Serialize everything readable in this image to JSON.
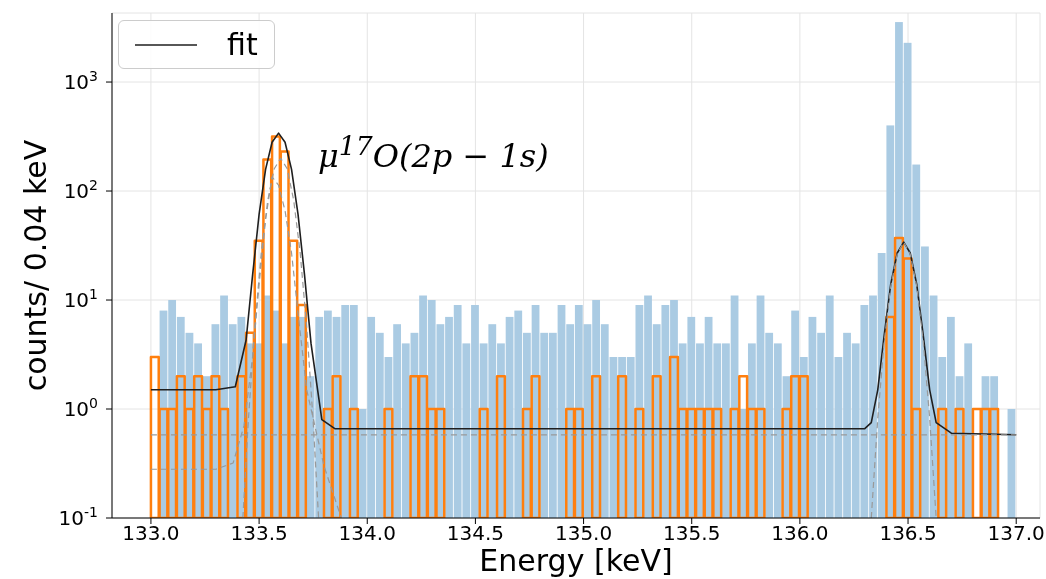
{
  "chart_data": {
    "type": "histogram",
    "xlabel": "Energy [keV]",
    "ylabel": "counts/ 0.04 keV",
    "annotations": [
      "μ$^{17}$O(2p − 1s)"
    ],
    "log": "y",
    "grid": true,
    "legend": "top left",
    "xlim": [
      132.82,
      137.11
    ],
    "ylim": [
      0.1,
      4300
    ],
    "xticks": [
      {
        "value": 133,
        "label": "133.0"
      },
      {
        "value": 133.5,
        "label": "133.5"
      },
      {
        "value": 134,
        "label": "134.0"
      },
      {
        "value": 134.5,
        "label": "134.5"
      },
      {
        "value": 135,
        "label": "135.0"
      },
      {
        "value": 135.5,
        "label": "135.5"
      },
      {
        "value": 136,
        "label": "136.0"
      },
      {
        "value": 136.5,
        "label": "136.5"
      },
      {
        "value": 137,
        "label": "137.0"
      }
    ],
    "yticks": [
      {
        "value": 0.1,
        "label": "10$^{-1}$"
      },
      {
        "value": 1,
        "label": "10$^{0}$"
      },
      {
        "value": 10,
        "label": "10$^{1}$"
      },
      {
        "value": 100,
        "label": "10$^{2}$"
      },
      {
        "value": 1000,
        "label": "10$^{3}$"
      }
    ],
    "bins": [
      133,
      133.04,
      133.08,
      133.12,
      133.16,
      133.2,
      133.24,
      133.28,
      133.32,
      133.36,
      133.4,
      133.44,
      133.48,
      133.52,
      133.56,
      133.6,
      133.64,
      133.68,
      133.72,
      133.76,
      133.8,
      133.84,
      133.88,
      133.92,
      133.96,
      134,
      134.04,
      134.08,
      134.12,
      134.16,
      134.2,
      134.24,
      134.28,
      134.32,
      134.36,
      134.4,
      134.44,
      134.48,
      134.52,
      134.56,
      134.6,
      134.64,
      134.68,
      134.72,
      134.76,
      134.8,
      134.84,
      134.88,
      134.92,
      134.96,
      135,
      135.04,
      135.08,
      135.12,
      135.16,
      135.2,
      135.24,
      135.28,
      135.32,
      135.36,
      135.4,
      135.44,
      135.48,
      135.52,
      135.56,
      135.6,
      135.64,
      135.68,
      135.72,
      135.76,
      135.8,
      135.84,
      135.88,
      135.92,
      135.96,
      136,
      136.04,
      136.08,
      136.12,
      136.16,
      136.2,
      136.24,
      136.28,
      136.32,
      136.36,
      136.4,
      136.44,
      136.48,
      136.52,
      136.56,
      136.6,
      136.64,
      136.68,
      136.72,
      136.76,
      136.8,
      136.84,
      136.88,
      136.92,
      136.96,
      137
    ],
    "series": [
      {
        "type": "histogram",
        "color": "#aacbe3",
        "values": [
          null,
          8,
          10,
          7,
          5,
          4,
          2,
          6,
          11,
          6,
          7,
          4,
          4,
          11,
          8,
          4,
          7,
          7,
          2,
          7,
          8,
          7,
          9,
          9,
          1,
          7,
          5,
          3,
          6,
          4,
          5,
          11,
          10,
          6,
          7,
          9,
          4,
          9,
          4,
          6,
          4,
          7,
          8,
          5,
          9,
          5,
          5,
          9,
          6,
          9,
          6,
          10,
          6,
          3,
          3,
          3,
          9,
          11,
          6,
          9,
          10,
          4,
          7,
          4,
          7,
          4,
          4,
          11,
          1,
          4,
          11,
          5,
          4,
          2,
          8,
          3,
          7,
          5,
          11,
          3,
          5,
          4,
          9,
          11,
          27,
          400,
          3550,
          2290,
          175,
          31,
          11,
          3,
          7,
          2,
          4,
          null,
          2,
          2,
          null,
          1
        ]
      },
      {
        "type": "histogram",
        "color": "#ff7f0e",
        "values": [
          3,
          1,
          1,
          2,
          1,
          2,
          1,
          2,
          1,
          null,
          2,
          5,
          35,
          195,
          316,
          230,
          35,
          9,
          null,
          null,
          1,
          2,
          null,
          1,
          null,
          null,
          null,
          1,
          null,
          null,
          2,
          2,
          1,
          1,
          null,
          null,
          null,
          null,
          1,
          null,
          2,
          null,
          null,
          1,
          2,
          null,
          null,
          null,
          1,
          1,
          null,
          2,
          null,
          null,
          2,
          null,
          1,
          null,
          2,
          null,
          3,
          1,
          1,
          1,
          1,
          1,
          null,
          1,
          2,
          1,
          1,
          null,
          null,
          1,
          2,
          2,
          null,
          null,
          null,
          null,
          null,
          null,
          null,
          null,
          null,
          7,
          37,
          24,
          1,
          null,
          null,
          1,
          null,
          1,
          null,
          1,
          1,
          1,
          null,
          null
        ]
      },
      {
        "type": "line",
        "name": "fit",
        "color": "#1f1f1f",
        "x": [
          133,
          133.3,
          133.39,
          133.44,
          133.47,
          133.5,
          133.53,
          133.56,
          133.59,
          133.62,
          133.65,
          133.68,
          133.71,
          133.74,
          133.79,
          133.85,
          136.3,
          136.33,
          136.36,
          136.39,
          136.42,
          136.45,
          136.48,
          136.51,
          136.54,
          136.57,
          136.6,
          136.63,
          136.7,
          137
        ],
        "values": [
          1.5,
          1.5,
          1.6,
          4.3,
          17,
          61,
          158,
          280,
          340,
          280,
          158,
          61,
          17,
          4,
          0.8,
          0.66,
          0.66,
          0.75,
          1.5,
          4.8,
          14,
          27,
          34,
          27,
          14,
          4.8,
          1.5,
          0.75,
          0.6,
          0.58
        ]
      },
      {
        "type": "line",
        "color": "#999999",
        "line_style": "dashed",
        "x": [
          133,
          137
        ],
        "values": [
          0.58,
          0.58
        ]
      },
      {
        "type": "line",
        "color": "#999999",
        "line_style": "dashed",
        "x": [
          133,
          133.3,
          133.38,
          133.43,
          133.47,
          133.5,
          133.53,
          133.56,
          133.59,
          133.62,
          133.65,
          133.68,
          133.72,
          133.8,
          133.88
        ],
        "values": [
          0.28,
          0.28,
          0.32,
          0.7,
          3,
          14,
          55,
          135,
          113,
          66,
          27,
          7.6,
          1.5,
          0.3,
          0.1
        ]
      },
      {
        "type": "line",
        "color": "#999999",
        "line_style": "dashed",
        "x": [
          133.425,
          133.45,
          133.48,
          133.51,
          133.54,
          133.57,
          133.6,
          133.63,
          133.66,
          133.69,
          133.72,
          133.75,
          133.775
        ],
        "values": [
          0.1,
          0.77,
          5.7,
          27,
          82,
          160,
          200,
          160,
          82,
          27,
          5.7,
          0.77,
          0.1
        ]
      },
      {
        "type": "line",
        "color": "#999999",
        "line_style": "dashed",
        "x": [
          136.33,
          136.36,
          136.39,
          136.42,
          136.45,
          136.48,
          136.51,
          136.54,
          136.57,
          136.6,
          136.63
        ],
        "values": [
          0.1,
          0.82,
          4.2,
          13.4,
          26.4,
          34,
          26.4,
          13.4,
          4.2,
          0.82,
          0.1
        ]
      }
    ]
  }
}
